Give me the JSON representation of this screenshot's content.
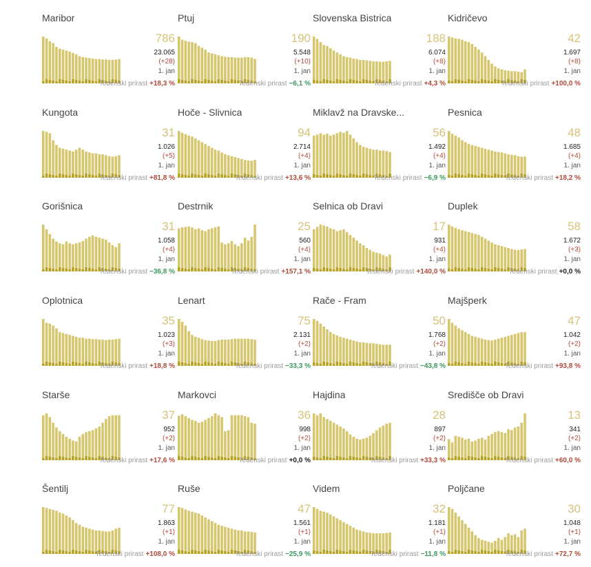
{
  "common": {
    "weekly_label": "Tedenski prirast",
    "date_label": "1. jan"
  },
  "colors": {
    "bar": "#d6c76e",
    "bar_recent": "#b8a224",
    "number": "#d6c279",
    "up": "#b04a3a",
    "down": "#3a9a5b",
    "zero": "#222222"
  },
  "chart_data": [
    {
      "type": "bar",
      "name": "Maribor",
      "active": "786",
      "total": "23.065",
      "change": "(+28)",
      "weekly": "+18,3 %",
      "trend": "up",
      "values": [
        100,
        96,
        90,
        86,
        78,
        74,
        72,
        70,
        68,
        65,
        62,
        58,
        56,
        55,
        54,
        53,
        52,
        52,
        51,
        51,
        50,
        50,
        51,
        52
      ]
    },
    {
      "type": "bar",
      "name": "Ptuj",
      "active": "190",
      "total": "5.548",
      "change": "(+10)",
      "weekly": "−6,1 %",
      "trend": "down",
      "values": [
        100,
        93,
        91,
        89,
        88,
        86,
        80,
        76,
        72,
        66,
        64,
        62,
        60,
        58,
        57,
        56,
        56,
        55,
        55,
        55,
        56,
        56,
        55,
        52
      ]
    },
    {
      "type": "bar",
      "name": "Slovenska Bistrica",
      "active": "188",
      "total": "6.074",
      "change": "(+8)",
      "weekly": "+4,3 %",
      "trend": "up",
      "values": [
        100,
        95,
        88,
        82,
        80,
        75,
        70,
        66,
        62,
        58,
        56,
        55,
        53,
        52,
        50,
        50,
        49,
        48,
        47,
        47,
        46,
        46,
        47,
        48
      ]
    },
    {
      "type": "bar",
      "name": "Kidričevo",
      "active": "42",
      "total": "1.697",
      "change": "(+8)",
      "weekly": "+100,0 %",
      "trend": "up",
      "values": [
        100,
        98,
        96,
        95,
        93,
        90,
        88,
        84,
        78,
        72,
        66,
        58,
        50,
        42,
        36,
        32,
        30,
        28,
        27,
        26,
        26,
        25,
        24,
        30
      ]
    },
    {
      "type": "bar",
      "name": "Kungota",
      "active": "31",
      "total": "1.026",
      "change": "(+5)",
      "weekly": "+81,8 %",
      "trend": "up",
      "values": [
        100,
        98,
        95,
        80,
        70,
        64,
        62,
        60,
        58,
        56,
        60,
        64,
        60,
        56,
        54,
        52,
        52,
        50,
        50,
        48,
        46,
        45,
        46,
        48
      ]
    },
    {
      "type": "bar",
      "name": "Hoče - Slivnica",
      "active": "94",
      "total": "2.714",
      "change": "(+4)",
      "weekly": "+13,6 %",
      "trend": "up",
      "values": [
        100,
        96,
        93,
        90,
        88,
        84,
        80,
        76,
        72,
        68,
        64,
        60,
        58,
        54,
        50,
        48,
        46,
        44,
        42,
        40,
        38,
        37,
        36,
        38
      ]
    },
    {
      "type": "bar",
      "name": "Miklavž na Dravske...",
      "active": "56",
      "total": "1.492",
      "change": "(+4)",
      "weekly": "−6,9 %",
      "trend": "down",
      "values": [
        90,
        92,
        95,
        92,
        94,
        90,
        92,
        95,
        98,
        96,
        100,
        92,
        84,
        76,
        70,
        66,
        64,
        62,
        60,
        60,
        58,
        58,
        57,
        55
      ]
    },
    {
      "type": "bar",
      "name": "Pesnica",
      "active": "48",
      "total": "1.685",
      "change": "(+4)",
      "weekly": "+18,2 %",
      "trend": "up",
      "values": [
        100,
        94,
        90,
        86,
        80,
        76,
        72,
        70,
        68,
        66,
        64,
        62,
        60,
        58,
        56,
        55,
        54,
        52,
        50,
        49,
        48,
        46,
        45,
        45
      ]
    },
    {
      "type": "bar",
      "name": "Gorišnica",
      "active": "31",
      "total": "1.058",
      "change": "(+4)",
      "weekly": "−36,8 %",
      "trend": "down",
      "values": [
        100,
        90,
        80,
        70,
        64,
        60,
        58,
        64,
        60,
        58,
        60,
        62,
        65,
        70,
        74,
        77,
        74,
        72,
        70,
        68,
        62,
        56,
        52,
        60
      ]
    },
    {
      "type": "bar",
      "name": "Destrnik",
      "active": "25",
      "total": "560",
      "change": "(+4)",
      "weekly": "+157,1 %",
      "trend": "up",
      "values": [
        92,
        94,
        95,
        96,
        94,
        90,
        92,
        88,
        86,
        90,
        92,
        94,
        96,
        62,
        58,
        60,
        65,
        58,
        54,
        60,
        72,
        66,
        74,
        100
      ]
    },
    {
      "type": "bar",
      "name": "Selnica ob Dravi",
      "active": "17",
      "total": "931",
      "change": "(+4)",
      "weekly": "+140,0 %",
      "trend": "up",
      "values": [
        90,
        95,
        100,
        98,
        96,
        92,
        90,
        86,
        88,
        90,
        84,
        78,
        72,
        66,
        60,
        56,
        50,
        46,
        42,
        40,
        38,
        35,
        32,
        36
      ]
    },
    {
      "type": "bar",
      "name": "Duplek",
      "active": "58",
      "total": "1.672",
      "change": "(+3)",
      "weekly": "+0,0 %",
      "trend": "zero",
      "values": [
        100,
        96,
        93,
        90,
        88,
        86,
        84,
        82,
        80,
        78,
        74,
        70,
        66,
        62,
        58,
        56,
        54,
        52,
        50,
        48,
        46,
        46,
        47,
        48
      ]
    },
    {
      "type": "bar",
      "name": "Oplotnica",
      "active": "35",
      "total": "1.023",
      "change": "(+3)",
      "weekly": "+18,8 %",
      "trend": "up",
      "values": [
        100,
        92,
        90,
        86,
        80,
        72,
        70,
        68,
        66,
        64,
        62,
        60,
        60,
        58,
        58,
        57,
        57,
        56,
        56,
        55,
        56,
        56,
        57,
        58
      ]
    },
    {
      "type": "bar",
      "name": "Lenart",
      "active": "75",
      "total": "2.131",
      "change": "(+2)",
      "weekly": "−33,3 %",
      "trend": "down",
      "values": [
        100,
        94,
        86,
        74,
        66,
        62,
        60,
        57,
        55,
        54,
        53,
        53,
        55,
        56,
        56,
        56,
        57,
        58,
        58,
        58,
        58,
        58,
        57,
        56
      ]
    },
    {
      "type": "bar",
      "name": "Rače - Fram",
      "active": "50",
      "total": "1.768",
      "change": "(+2)",
      "weekly": "−43,8 %",
      "trend": "down",
      "values": [
        100,
        96,
        90,
        84,
        78,
        72,
        68,
        65,
        62,
        60,
        58,
        56,
        54,
        52,
        50,
        50,
        49,
        48,
        48,
        47,
        46,
        45,
        45,
        45
      ]
    },
    {
      "type": "bar",
      "name": "Majšperk",
      "active": "47",
      "total": "1.042",
      "change": "(+2)",
      "weekly": "+93,8 %",
      "trend": "up",
      "values": [
        100,
        92,
        86,
        80,
        76,
        72,
        68,
        64,
        62,
        60,
        58,
        56,
        55,
        54,
        56,
        58,
        60,
        62,
        64,
        66,
        68,
        70,
        72,
        72
      ]
    },
    {
      "type": "bar",
      "name": "Starše",
      "active": "37",
      "total": "952",
      "change": "(+2)",
      "weekly": "+17,6 %",
      "trend": "up",
      "values": [
        96,
        100,
        92,
        80,
        70,
        62,
        56,
        50,
        46,
        42,
        40,
        50,
        56,
        60,
        62,
        64,
        68,
        72,
        80,
        88,
        94,
        96,
        96,
        96
      ]
    },
    {
      "type": "bar",
      "name": "Markovci",
      "active": "36",
      "total": "998",
      "change": "(+2)",
      "weekly": "+0,0 %",
      "trend": "zero",
      "values": [
        95,
        98,
        94,
        90,
        86,
        84,
        80,
        82,
        86,
        90,
        94,
        100,
        96,
        92,
        62,
        64,
        96,
        96,
        96,
        96,
        94,
        92,
        80,
        78
      ]
    },
    {
      "type": "bar",
      "name": "Hajdina",
      "active": "28",
      "total": "897",
      "change": "(+2)",
      "weekly": "+33,3 %",
      "trend": "up",
      "values": [
        100,
        96,
        100,
        92,
        88,
        84,
        80,
        76,
        72,
        68,
        62,
        55,
        50,
        46,
        44,
        46,
        48,
        52,
        58,
        64,
        70,
        74,
        78,
        80
      ]
    },
    {
      "type": "bar",
      "name": "Središče ob Dravi",
      "active": "13",
      "total": "341",
      "change": "(+2)",
      "weekly": "+60,0 %",
      "trend": "up",
      "values": [
        45,
        38,
        52,
        50,
        48,
        44,
        46,
        40,
        42,
        46,
        48,
        44,
        52,
        56,
        60,
        62,
        60,
        58,
        66,
        64,
        70,
        72,
        80,
        100
      ]
    },
    {
      "type": "bar",
      "name": "Šentilj",
      "active": "77",
      "total": "1.863",
      "change": "(+1)",
      "weekly": "+108,0 %",
      "trend": "up",
      "values": [
        100,
        98,
        96,
        94,
        92,
        88,
        86,
        82,
        78,
        72,
        66,
        62,
        58,
        56,
        54,
        52,
        50,
        50,
        49,
        48,
        48,
        50,
        54,
        56
      ]
    },
    {
      "type": "bar",
      "name": "Ruše",
      "active": "47",
      "total": "1.561",
      "change": "(+1)",
      "weekly": "−25,9 %",
      "trend": "down",
      "values": [
        100,
        98,
        95,
        92,
        90,
        88,
        86,
        82,
        78,
        74,
        70,
        66,
        62,
        60,
        58,
        56,
        54,
        52,
        50,
        50,
        48,
        48,
        47,
        46
      ]
    },
    {
      "type": "bar",
      "name": "Videm",
      "active": "32",
      "total": "1.181",
      "change": "(+1)",
      "weekly": "−11,8 %",
      "trend": "down",
      "values": [
        100,
        96,
        92,
        90,
        88,
        84,
        80,
        76,
        72,
        68,
        64,
        60,
        56,
        52,
        50,
        48,
        46,
        45,
        44,
        44,
        44,
        44,
        45,
        46
      ]
    },
    {
      "type": "bar",
      "name": "Poljčane",
      "active": "30",
      "total": "1.048",
      "change": "(+1)",
      "weekly": "+72,7 %",
      "trend": "up",
      "values": [
        100,
        96,
        88,
        80,
        72,
        64,
        56,
        48,
        40,
        34,
        30,
        28,
        26,
        24,
        28,
        34,
        30,
        36,
        44,
        40,
        42,
        36,
        50,
        54
      ]
    }
  ]
}
